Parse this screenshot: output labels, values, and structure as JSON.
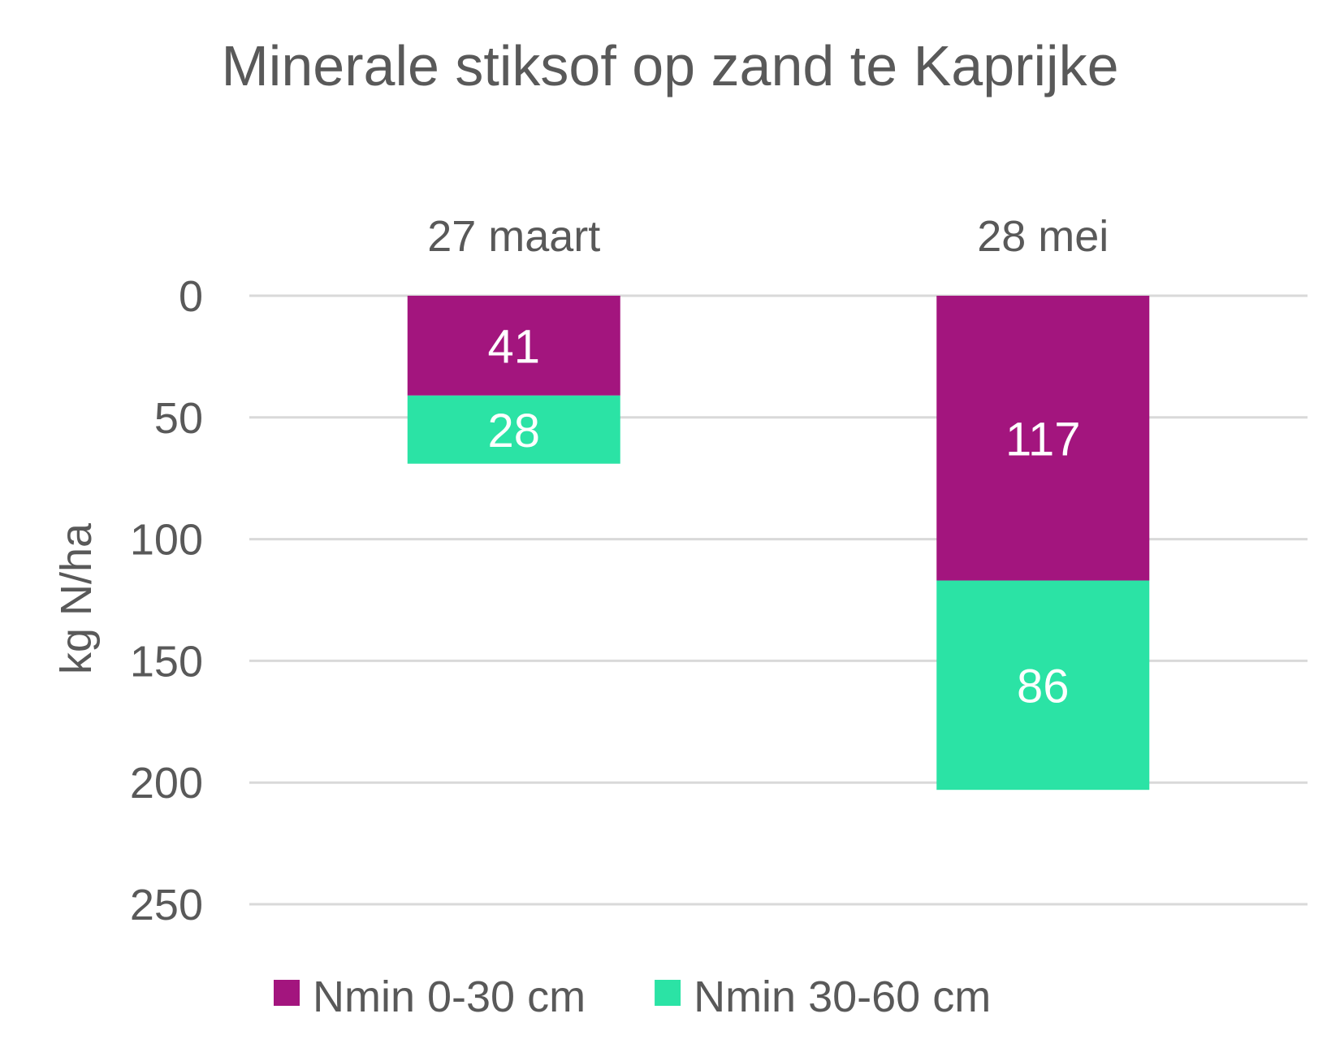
{
  "chart_data": {
    "type": "bar",
    "orientation": "vertical-stacked-inverted",
    "title": "Minerale stiksof op zand te Kaprijke",
    "ylabel": "kg N/ha",
    "xlabel": "",
    "categories": [
      "27 maart",
      "28 mei"
    ],
    "category_axis_position": "top",
    "y_axis_inverted": true,
    "ylim": [
      0,
      250
    ],
    "yticks": [
      0,
      50,
      100,
      150,
      200,
      250
    ],
    "grid": true,
    "legend_position": "bottom",
    "series": [
      {
        "name": "Nmin 0-30 cm",
        "values": [
          41,
          117
        ],
        "color": "#A3157E"
      },
      {
        "name": "Nmin 30-60 cm",
        "values": [
          28,
          86
        ],
        "color": "#2BE3A5"
      }
    ],
    "data_labels": true
  }
}
